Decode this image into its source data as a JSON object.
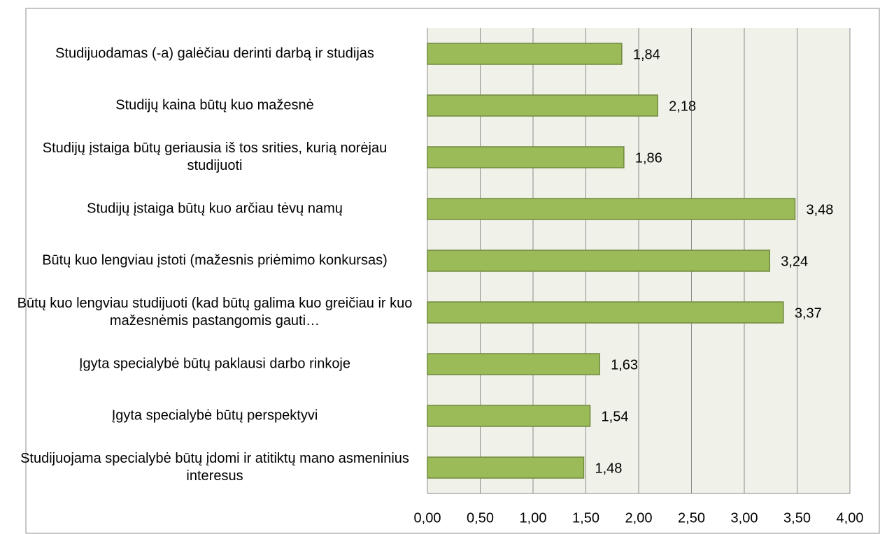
{
  "chart_data": {
    "type": "bar",
    "orientation": "horizontal",
    "categories": [
      "Studijuodamas (-a) galėčiau derinti darbą ir studijas",
      "Studijų kaina būtų kuo mažesnė",
      "Studijų įstaiga būtų geriausia iš tos srities, kurią norėjau studijuoti",
      "Studijų įstaiga būtų kuo arčiau tėvų namų",
      "Būtų kuo lengviau įstoti (mažesnis priėmimo konkursas)",
      "Būtų kuo lengviau studijuoti (kad būtų galima kuo greičiau ir kuo mažesnėmis pastangomis gauti…",
      "Įgyta specialybė būtų paklausi darbo rinkoje",
      "Įgyta specialybė būtų perspektyvi",
      "Studijuojama specialybė būtų įdomi ir atitiktų mano asmeninius interesus"
    ],
    "values": [
      1.84,
      2.18,
      1.86,
      3.48,
      3.24,
      3.37,
      1.63,
      1.54,
      1.48
    ],
    "value_labels": [
      "1,84",
      "2,18",
      "1,86",
      "3,48",
      "3,24",
      "3,37",
      "1,63",
      "1,54",
      "1,48"
    ],
    "color": "#9bbb59",
    "xlim": [
      0,
      4
    ],
    "xticks": [
      {
        "value": 0,
        "label": "0,00"
      },
      {
        "value": 0.5,
        "label": "0,50"
      },
      {
        "value": 1,
        "label": "1,00"
      },
      {
        "value": 1.5,
        "label": "1,50"
      },
      {
        "value": 2,
        "label": "2,00"
      },
      {
        "value": 2.5,
        "label": "2,50"
      },
      {
        "value": 3,
        "label": "3,00"
      },
      {
        "value": 3.5,
        "label": "3,50"
      },
      {
        "value": 4,
        "label": "4,00"
      }
    ],
    "grid": true
  }
}
